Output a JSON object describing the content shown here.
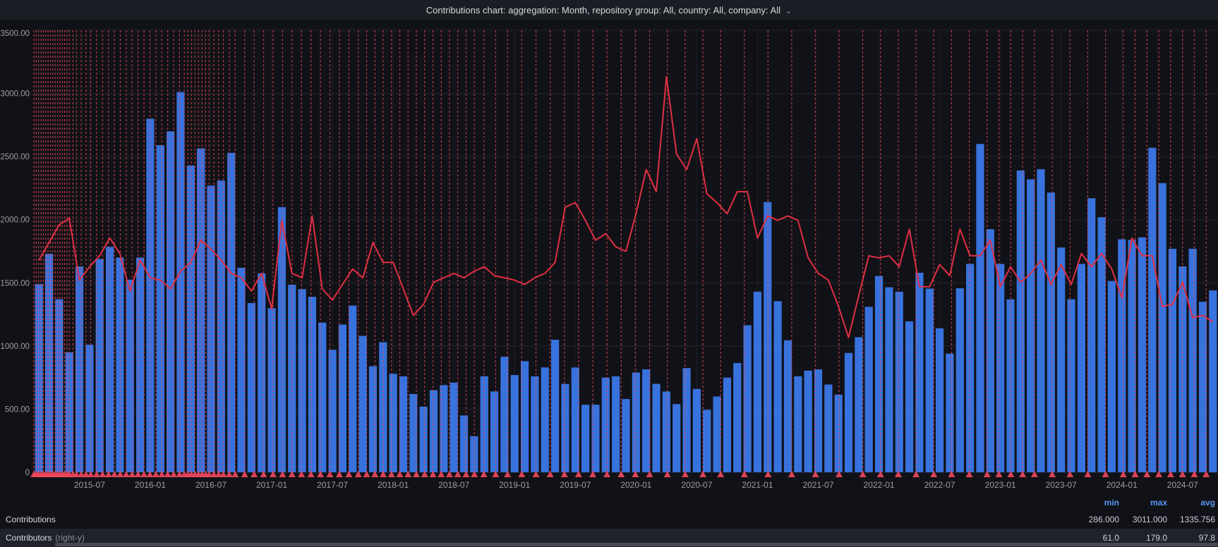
{
  "panel": {
    "title": "Contributions chart: aggregation: Month, repository group: All, country: All, company: All",
    "chevron_icon": "⌄"
  },
  "colors": {
    "background": "#111217",
    "header_bg": "#1a1d23",
    "bar_blue": "#3872dd",
    "line_red": "#e02f44",
    "annotation_red": "#f2495c",
    "grid": "rgba(204,204,220,0.10)",
    "axis_text": "#9d9fa6",
    "legend_header_blue": "#5794f2"
  },
  "chart_data": {
    "type": "bar",
    "title": "Contributions chart: aggregation: Month, repository group: All, country: All, company: All",
    "x": [
      "2015-02",
      "2015-03",
      "2015-04",
      "2015-05",
      "2015-06",
      "2015-07",
      "2015-08",
      "2015-09",
      "2015-10",
      "2015-11",
      "2015-12",
      "2016-01",
      "2016-02",
      "2016-03",
      "2016-04",
      "2016-05",
      "2016-06",
      "2016-07",
      "2016-08",
      "2016-09",
      "2016-10",
      "2016-11",
      "2016-12",
      "2017-01",
      "2017-02",
      "2017-03",
      "2017-04",
      "2017-05",
      "2017-06",
      "2017-07",
      "2017-08",
      "2017-09",
      "2017-10",
      "2017-11",
      "2017-12",
      "2018-01",
      "2018-02",
      "2018-03",
      "2018-04",
      "2018-05",
      "2018-06",
      "2018-07",
      "2018-08",
      "2018-09",
      "2018-10",
      "2018-11",
      "2018-12",
      "2019-01",
      "2019-02",
      "2019-03",
      "2019-04",
      "2019-05",
      "2019-06",
      "2019-07",
      "2019-08",
      "2019-09",
      "2019-10",
      "2019-11",
      "2019-12",
      "2020-01",
      "2020-02",
      "2020-03",
      "2020-04",
      "2020-05",
      "2020-06",
      "2020-07",
      "2020-08",
      "2020-09",
      "2020-10",
      "2020-11",
      "2020-12",
      "2021-01",
      "2021-02",
      "2021-03",
      "2021-04",
      "2021-05",
      "2021-06",
      "2021-07",
      "2021-08",
      "2021-09",
      "2021-10",
      "2021-11",
      "2021-12",
      "2022-01",
      "2022-02",
      "2022-03",
      "2022-04",
      "2022-05",
      "2022-06",
      "2022-07",
      "2022-08",
      "2022-09",
      "2022-10",
      "2022-11",
      "2022-12",
      "2023-01",
      "2023-02",
      "2023-03",
      "2023-04",
      "2023-05",
      "2023-06",
      "2023-07",
      "2023-08",
      "2023-09",
      "2023-10",
      "2023-11",
      "2023-12",
      "2024-01",
      "2024-02",
      "2024-03",
      "2024-04",
      "2024-05",
      "2024-06",
      "2024-07",
      "2024-08",
      "2024-09",
      "2024-10"
    ],
    "series": [
      {
        "name": "Contributions",
        "type": "bar",
        "axis": "left",
        "color": "#3872dd",
        "values": [
          1490,
          1730,
          1370,
          950,
          1630,
          1010,
          1690,
          1785,
          1700,
          1525,
          1700,
          2800,
          2590,
          2700,
          3011,
          2430,
          2565,
          2270,
          2310,
          2530,
          1620,
          1340,
          1575,
          1300,
          2100,
          1485,
          1450,
          1390,
          1185,
          970,
          1170,
          1320,
          1080,
          840,
          1030,
          780,
          760,
          620,
          520,
          650,
          690,
          710,
          450,
          286,
          760,
          640,
          915,
          770,
          880,
          760,
          830,
          1050,
          700,
          830,
          535,
          535,
          750,
          760,
          580,
          790,
          815,
          700,
          640,
          540,
          825,
          660,
          495,
          600,
          750,
          865,
          1165,
          1430,
          2140,
          1355,
          1045,
          760,
          805,
          815,
          695,
          615,
          945,
          1070,
          1310,
          1555,
          1465,
          1430,
          1195,
          1580,
          1455,
          1140,
          940,
          1457,
          1650,
          2600,
          1925,
          1650,
          1370,
          2390,
          2320,
          2400,
          2215,
          1780,
          1370,
          1650,
          2170,
          2020,
          1515,
          1845,
          1840,
          1860,
          2570,
          2290,
          1770,
          1630,
          1770,
          1350,
          1440
        ]
      },
      {
        "name": "Contributors",
        "type": "line",
        "axis": "right",
        "color": "#e02f44",
        "values": [
          96,
          104,
          112,
          115,
          87,
          93,
          98,
          106,
          99,
          82,
          96,
          88,
          87,
          83,
          91,
          95,
          105,
          101,
          96,
          90,
          88,
          82,
          90,
          74,
          114,
          90,
          88,
          116,
          83,
          78,
          85,
          92,
          88,
          104,
          95,
          95,
          83,
          71,
          76,
          86,
          88,
          90,
          88,
          91,
          93,
          89,
          88,
          87,
          85,
          88,
          90,
          95,
          120,
          122,
          114,
          105,
          108,
          102,
          100,
          117,
          137,
          127,
          179,
          144,
          137,
          151,
          126,
          122,
          117,
          127,
          127,
          106,
          116,
          114,
          116,
          114,
          97,
          90,
          87,
          75,
          61,
          80,
          98,
          97,
          98,
          93,
          110,
          84,
          84,
          94,
          89,
          110,
          98,
          98,
          105,
          84,
          93,
          86,
          90,
          96,
          85,
          94,
          85,
          99,
          93,
          99,
          92,
          79,
          106,
          98,
          98,
          75,
          76,
          86,
          70,
          71,
          68
        ]
      }
    ],
    "ylabel": "",
    "xlabel": "",
    "left_axis": {
      "min": 0,
      "max": 3500,
      "tick_labels": [
        "0",
        "500.00",
        "1000.00",
        "1500.00",
        "2000.00",
        "2500.00",
        "3000.00",
        "3500.00"
      ]
    },
    "right_axis": {
      "min": 0,
      "max": 200,
      "labels_visible": false
    },
    "x_tick_labels": [
      "2015-07",
      "2016-01",
      "2016-07",
      "2017-01",
      "2017-07",
      "2018-01",
      "2018-07",
      "2019-01",
      "2019-07",
      "2020-01",
      "2020-07",
      "2021-01",
      "2021-07",
      "2022-01",
      "2022-07",
      "2023-01",
      "2023-07",
      "2024-01",
      "2024-07"
    ],
    "grid": true,
    "legend_position": "bottom-table",
    "annotations": {
      "style": "dashed-vertical-with-triangle-marker",
      "color": "#f2495c",
      "positions": [
        0.0,
        0.002,
        0.004,
        0.006,
        0.008,
        0.01,
        0.012,
        0.014,
        0.016,
        0.018,
        0.02,
        0.022,
        0.024,
        0.026,
        0.028,
        0.03,
        0.033,
        0.036,
        0.04,
        0.044,
        0.048,
        0.053,
        0.058,
        0.063,
        0.068,
        0.073,
        0.078,
        0.083,
        0.088,
        0.093,
        0.098,
        0.103,
        0.108,
        0.113,
        0.118,
        0.123,
        0.127,
        0.13,
        0.133,
        0.136,
        0.139,
        0.142,
        0.145,
        0.148,
        0.152,
        0.156,
        0.16,
        0.165,
        0.17,
        0.178,
        0.186,
        0.194,
        0.202,
        0.21,
        0.218,
        0.226,
        0.234,
        0.242,
        0.25,
        0.258,
        0.266,
        0.274,
        0.281,
        0.288,
        0.295,
        0.302,
        0.309,
        0.316,
        0.323,
        0.33,
        0.337,
        0.344,
        0.351,
        0.358,
        0.365,
        0.372,
        0.38,
        0.39,
        0.4,
        0.412,
        0.424,
        0.436,
        0.448,
        0.46,
        0.472,
        0.484,
        0.496,
        0.508,
        0.52,
        0.535,
        0.55,
        0.565,
        0.58,
        0.6,
        0.62,
        0.64,
        0.66,
        0.68,
        0.7,
        0.715,
        0.73,
        0.745,
        0.76,
        0.775,
        0.79,
        0.805,
        0.815,
        0.825,
        0.835,
        0.845,
        0.86,
        0.875,
        0.89,
        0.905,
        0.92,
        0.93,
        0.94,
        0.95,
        0.96,
        0.97,
        0.98,
        0.99
      ]
    }
  },
  "legend": {
    "columns": [
      "min",
      "max",
      "avg"
    ],
    "rows": [
      {
        "label": "Contributions",
        "suffix": "",
        "min": "286.000",
        "max": "3011.000",
        "avg": "1335.756"
      },
      {
        "label": "Contributors",
        "suffix": "(right-y)",
        "min": "61.0",
        "max": "179.0",
        "avg": "97.8"
      }
    ]
  }
}
